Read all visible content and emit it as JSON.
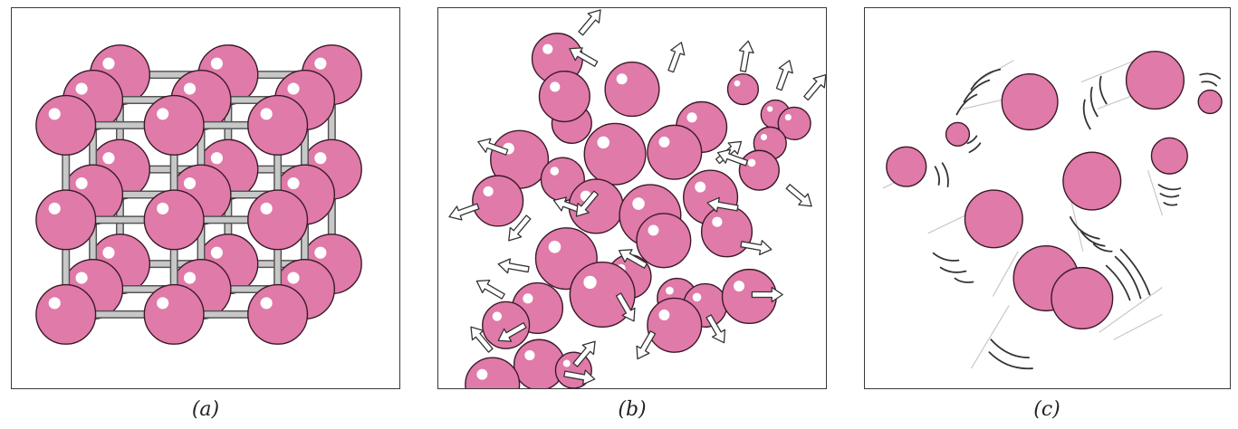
{
  "figure": {
    "panels": [
      {
        "id": "a",
        "caption": "(a)"
      },
      {
        "id": "b",
        "caption": "(b)"
      },
      {
        "id": "c",
        "caption": "(c)"
      }
    ]
  },
  "colors": {
    "sphere_fill": "#e07aa8",
    "sphere_stroke": "#3a1a28",
    "highlight": "#ffffff",
    "bond": "#c8c8c8",
    "arrow_fill": "#ffffff",
    "arrow_stroke": "#333333",
    "motion_line": "#c8c8c8",
    "arc": "#333333"
  }
}
